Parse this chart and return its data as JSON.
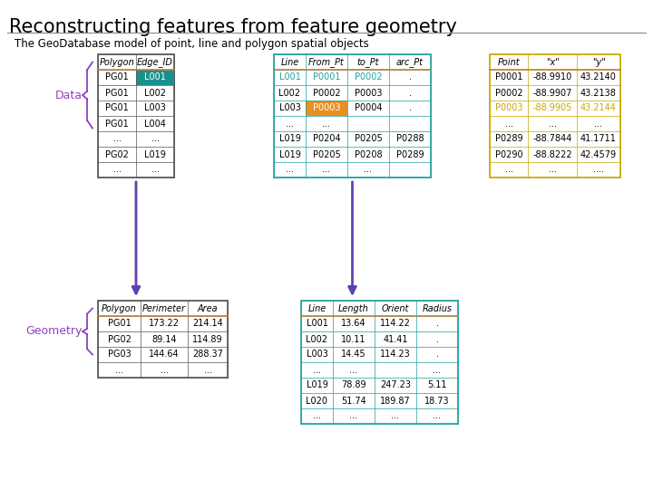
{
  "title": "Reconstructing features from feature geometry",
  "subtitle": "The GeoDatabase model of point, line and polygon spatial objects",
  "bg_color": "#ffffff",
  "title_fontsize": 15,
  "subtitle_fontsize": 8.5,
  "data_label": "Data",
  "geometry_label": "Geometry",
  "poly_edge_table": {
    "border_color": "#555555",
    "header_line_color": "#c08040",
    "header": [
      "Polygon",
      "Edge_ID"
    ],
    "rows": [
      [
        "PG01",
        "L001"
      ],
      [
        "PG01",
        "L002"
      ],
      [
        "PG01",
        "L003"
      ],
      [
        "PG01",
        "L004"
      ],
      [
        "...",
        "..."
      ],
      [
        "PG02",
        "L019"
      ],
      [
        "...",
        "..."
      ]
    ],
    "highlight_row": 0,
    "highlight_col": 1,
    "highlight_bg": "#1a9090",
    "highlight_fg": "#ffffff"
  },
  "line_table": {
    "border_color": "#20a0a0",
    "header_line_color": "#c08040",
    "header": [
      "Line",
      "From_Pt",
      "to_Pt",
      "arc_Pt"
    ],
    "rows": [
      [
        "L001",
        "P0001",
        "P0002",
        "."
      ],
      [
        "L002",
        "P0002",
        "P0003",
        "."
      ],
      [
        "L003",
        "P0003",
        "P0004",
        "."
      ],
      [
        "...",
        "...",
        "",
        ""
      ],
      [
        "L019",
        "P0204",
        "P0205",
        "P0288"
      ],
      [
        "L019",
        "P0205",
        "P0208",
        "P0289"
      ],
      [
        "...",
        "...",
        "...",
        ""
      ]
    ],
    "row0_fg": "#20a0a0",
    "orange_cell": [
      2,
      1
    ],
    "orange_bg": "#e89020",
    "orange_fg": "#ffffff"
  },
  "point_table": {
    "border_color": "#c8a800",
    "header_line_color": "#c08040",
    "header": [
      "Point",
      "\"x\"",
      "\"y\""
    ],
    "rows": [
      [
        "P0001",
        "-88.9910",
        "43.2140"
      ],
      [
        "P0002",
        "-88.9907",
        "43.2138"
      ],
      [
        "P0003",
        "-88.9905",
        "43.2144"
      ],
      [
        "...",
        "...",
        "..."
      ],
      [
        "P0289",
        "-88.7844",
        "41.1711"
      ],
      [
        "P0290",
        "-88.8222",
        "42.4579"
      ],
      [
        "...",
        "...",
        "...."
      ]
    ],
    "highlight_row": 2,
    "highlight_fg": "#c8a800"
  },
  "poly_geom_table": {
    "border_color": "#555555",
    "header_line_color": "#c08040",
    "header": [
      "Polygon",
      "Perimeter",
      "Area"
    ],
    "rows": [
      [
        "PG01",
        "173.22",
        "214.14"
      ],
      [
        "PG02",
        "89.14",
        "114.89"
      ],
      [
        "PG03",
        "144.64",
        "288.37"
      ],
      [
        "...",
        "...",
        "..."
      ]
    ]
  },
  "line_geom_table": {
    "border_color": "#20a0a0",
    "header_line_color": "#c08040",
    "header": [
      "Line",
      "Length",
      "Orient",
      "Radius"
    ],
    "rows": [
      [
        "L001",
        "13.64",
        "114.22",
        "."
      ],
      [
        "L002",
        "10.11",
        "41.41",
        "."
      ],
      [
        "L003",
        "14.45",
        "114.23",
        "."
      ],
      [
        "...",
        "...",
        "",
        "..."
      ],
      [
        "L019",
        "78.89",
        "247.23",
        "5.11"
      ],
      [
        "L020",
        "51.74",
        "189.87",
        "18.73"
      ],
      [
        "...",
        "...",
        "...",
        "..."
      ]
    ]
  },
  "arrow_color": "#6040b0",
  "brace_color": "#9040c0"
}
